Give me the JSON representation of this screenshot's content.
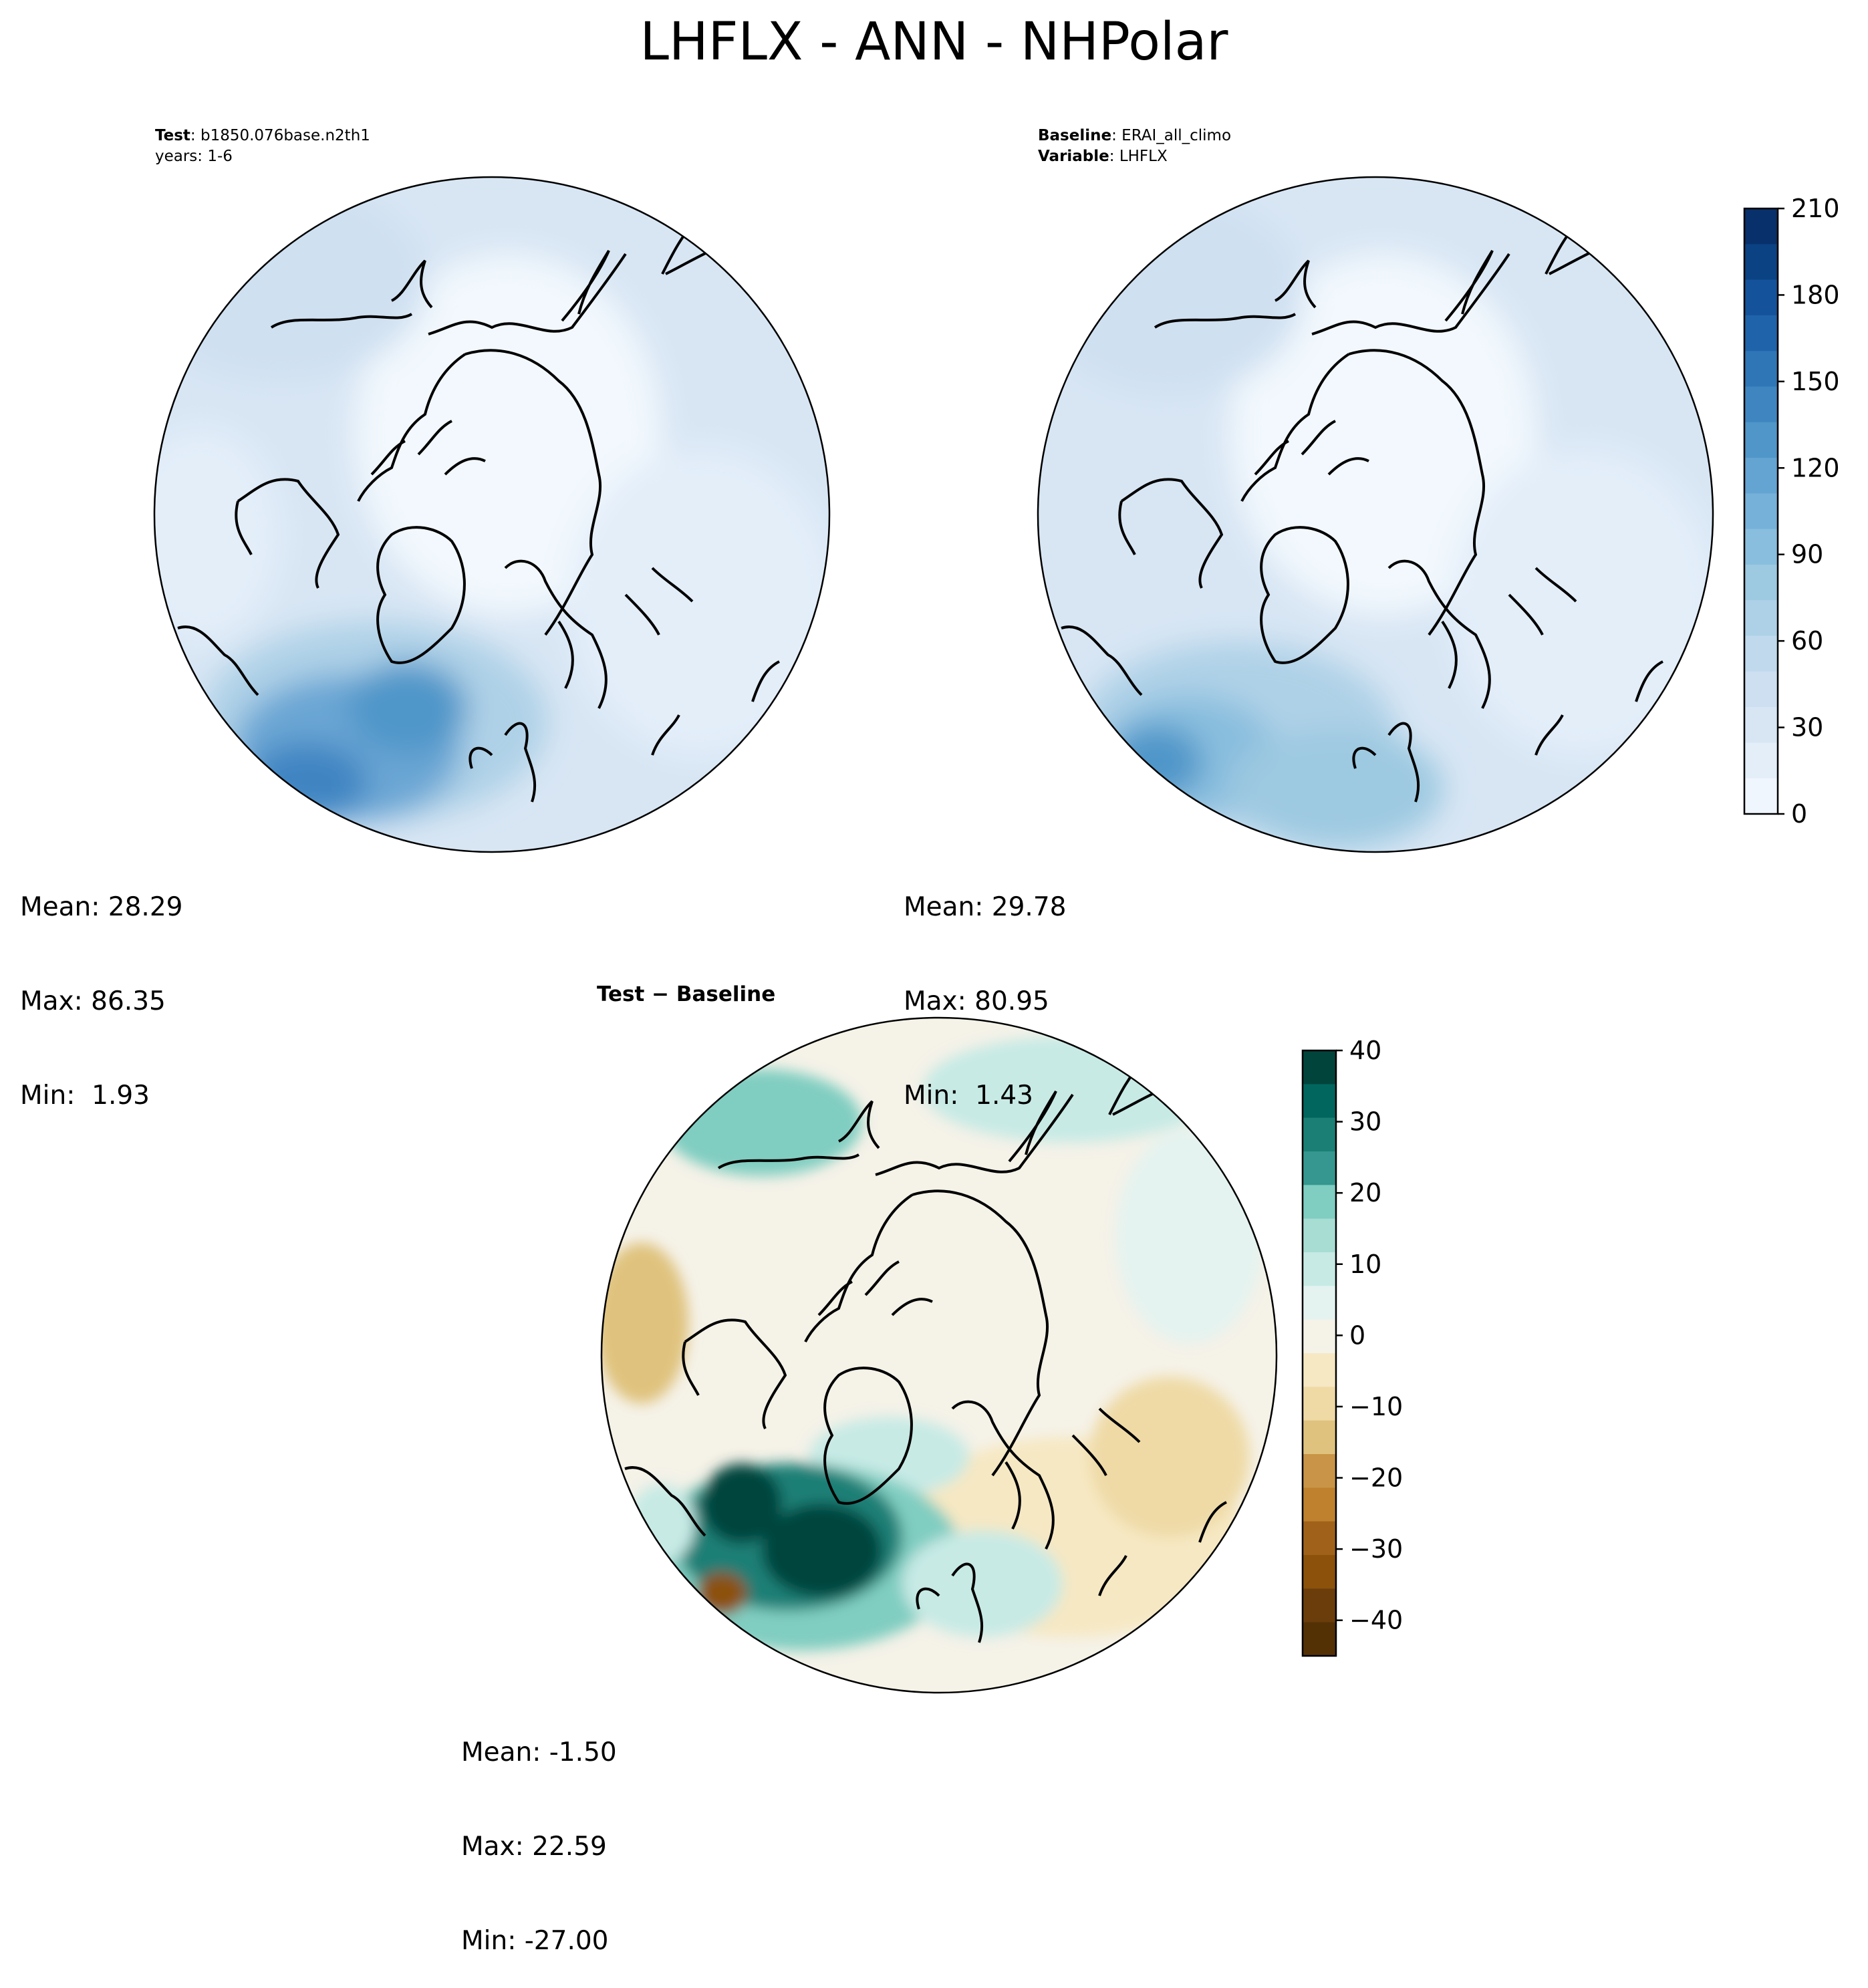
{
  "title": "LHFLX - ANN - NHPolar",
  "panels": {
    "test": {
      "label_key": "Test",
      "label_value": "b1850.076base.n2th1",
      "years": "years: 1-6",
      "stats": {
        "mean": "Mean: 28.29",
        "max": "Max: 86.35",
        "min": "Min:  1.93"
      }
    },
    "baseline": {
      "label_key": "Baseline",
      "label_value": "ERAI_all_climo",
      "variable_key": "Variable",
      "variable_value": "LHFLX",
      "stats": {
        "mean": "Mean: 29.78",
        "max": "Max: 80.95",
        "min": "Min:  1.43"
      }
    },
    "diff": {
      "title": "Test − Baseline",
      "stats": {
        "mean": "Mean: -1.50",
        "max": "Max: 22.59",
        "min": "Min: -27.00"
      }
    }
  },
  "colorbars": {
    "main": {
      "ticks": [
        "0",
        "30",
        "60",
        "90",
        "120",
        "150",
        "180",
        "210"
      ],
      "colors": [
        "#f0f6fd",
        "#e3eef9",
        "#d8e6f4",
        "#cddff1",
        "#c0d9ed",
        "#afd1e7",
        "#9dc9e1",
        "#89bede",
        "#76b1d9",
        "#63a4d2",
        "#5096c9",
        "#3f86c0",
        "#2f76b6",
        "#1f64aa",
        "#14539c",
        "#0b4284",
        "#08306b"
      ],
      "map_colors": {
        "ocean_low": "#eaf3fb",
        "ocean_mid": "#d8e6f4",
        "ocean_high": "#cfe0f1",
        "ice": "#f2f8fd",
        "storm": "#6aa6d4",
        "storm_core": "#3f85c2"
      }
    },
    "diff": {
      "ticks": [
        "40",
        "30",
        "20",
        "10",
        "0",
        "−10",
        "−20",
        "−30",
        "−40"
      ],
      "colors": [
        "#01443c",
        "#01665e",
        "#1b7f76",
        "#35978f",
        "#80cdc1",
        "#a8ddd4",
        "#c7eae5",
        "#e4f3f0",
        "#f5f2e8",
        "#f6e8c3",
        "#efdaa6",
        "#dfc27d",
        "#c99447",
        "#bf812d",
        "#a0621a",
        "#8c510a",
        "#6a3d0b",
        "#543005"
      ],
      "map_colors": {
        "neutral": "#f5f2e8",
        "light_brown": "#f6e8c3",
        "brown": "#dfc27d",
        "dark_brown": "#a0621a",
        "light_teal": "#c7eae5",
        "teal": "#80cdc1",
        "dark_teal": "#1b7f76",
        "darkest_teal": "#01443c"
      }
    }
  }
}
